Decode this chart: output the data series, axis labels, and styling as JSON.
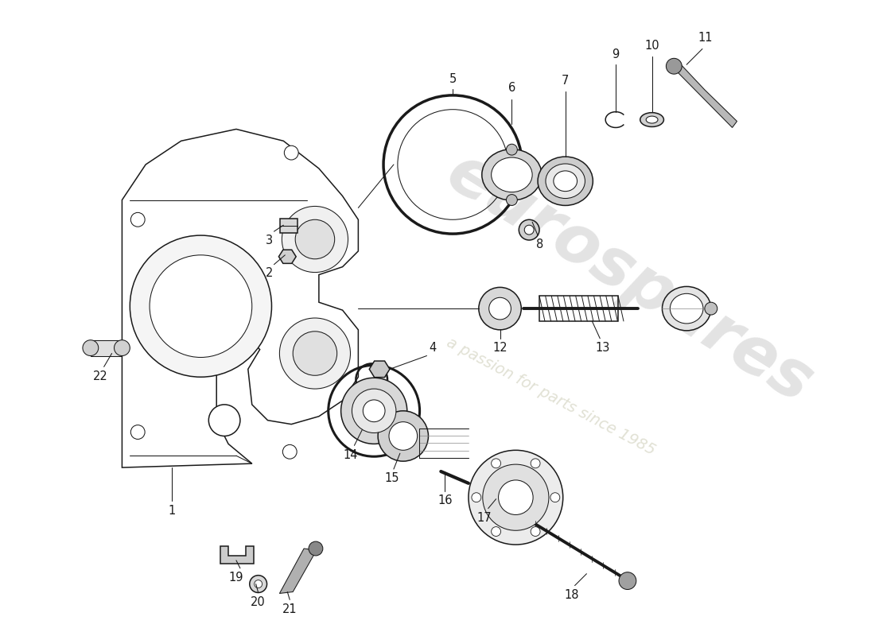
{
  "bg_color": "#ffffff",
  "line_color": "#1a1a1a",
  "wm_color1": "#c8c8c8",
  "wm_color2": "#deded0",
  "watermark1": "eurospares",
  "watermark2": "a passion for parts since 1985",
  "label_fontsize": 10.5,
  "fig_w": 11.0,
  "fig_h": 8.0,
  "xlim": [
    0,
    11
  ],
  "ylim": [
    0,
    8
  ]
}
